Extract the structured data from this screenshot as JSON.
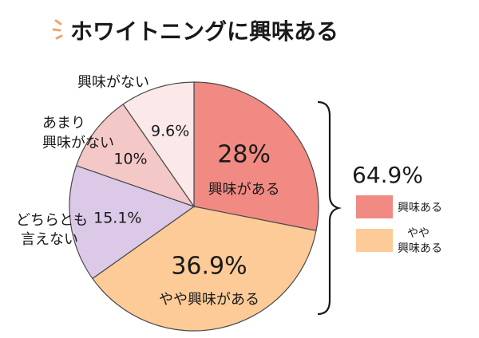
{
  "title": "ホワイトニングに興味ある",
  "colors": {
    "accent_spark": "#f4a36a",
    "slice_interested": "#f08a82",
    "slice_somewhat": "#fdcb97",
    "slice_neutral": "#dcc9e8",
    "slice_not_very": "#f3c8c7",
    "slice_not": "#fbe8e8",
    "stroke": "#4a4a4a"
  },
  "chart_data": {
    "type": "pie",
    "title": "ホワイトニングに興味ある",
    "slices": [
      {
        "label": "興味がある",
        "value": 28,
        "value_label": "28%"
      },
      {
        "label": "やや興味がある",
        "value": 36.9,
        "value_label": "36.9%"
      },
      {
        "label": "どちらとも言えない",
        "label_lines": [
          "どちらとも",
          "言えない"
        ],
        "value": 15.1,
        "value_label": "15.1%"
      },
      {
        "label": "あまり興味がない",
        "label_lines": [
          "あまり",
          "興味がない"
        ],
        "value": 10,
        "value_label": "10%"
      },
      {
        "label": "興味がない",
        "value": 9.6,
        "value_label": "9.6%"
      }
    ],
    "summary": {
      "value_label": "64.9%",
      "legend": [
        {
          "label_lines": [
            "興味ある"
          ]
        },
        {
          "label_lines": [
            "やや",
            "興味ある"
          ]
        }
      ]
    }
  }
}
